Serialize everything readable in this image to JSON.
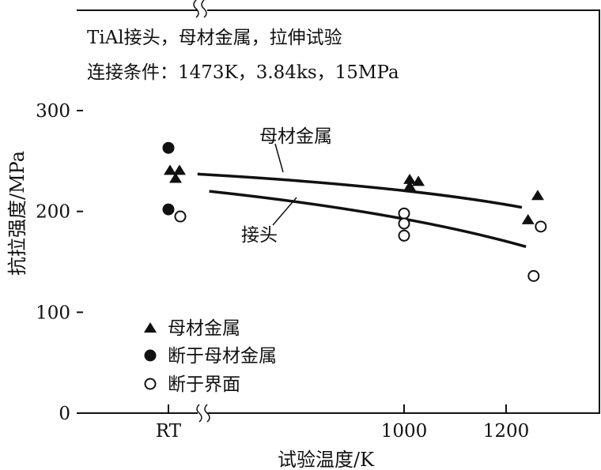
{
  "chart_data": {
    "type": "scatter",
    "annotation_lines": [
      "TiAl接头，母材金属，拉伸试验",
      "连接条件：1473K，3.84ks，15MPa"
    ],
    "xlabel": "试验温度/K",
    "ylabel": "抗拉强度/MPa",
    "ylim": [
      0,
      300
    ],
    "y_ticks": [
      0,
      100,
      200,
      300
    ],
    "x_ticks": [
      {
        "label": "RT",
        "value": "RT"
      },
      {
        "label": "1000",
        "value": 1000
      },
      {
        "label": "1200",
        "value": 1200
      }
    ],
    "x_axis_break": "between RT and 1000 K",
    "grid": false,
    "legend_position": "bottom-left",
    "series": [
      {
        "name": "母材金属",
        "marker": "filled-triangle",
        "points": [
          {
            "x": "RT",
            "y": 241
          },
          {
            "x": "RT",
            "y": 241
          },
          {
            "x": "RT",
            "y": 233
          },
          {
            "x": 1011,
            "y": 232
          },
          {
            "x": 1028,
            "y": 230
          },
          {
            "x": 1011,
            "y": 225
          },
          {
            "x": 1262,
            "y": 216
          },
          {
            "x": 1243,
            "y": 192
          }
        ]
      },
      {
        "name": "断于母材金属",
        "marker": "filled-circle",
        "points": [
          {
            "x": "RT",
            "y": 263
          },
          {
            "x": "RT",
            "y": 202
          }
        ]
      },
      {
        "name": "断于界面",
        "marker": "open-circle",
        "points": [
          {
            "x": "RT",
            "y": 195
          },
          {
            "x": 1000,
            "y": 198
          },
          {
            "x": 1000,
            "y": 188
          },
          {
            "x": 1000,
            "y": 176
          },
          {
            "x": 1268,
            "y": 185
          },
          {
            "x": 1254,
            "y": 136
          }
        ]
      }
    ],
    "curves": [
      {
        "label": "母材金属",
        "points": [
          {
            "x": 595,
            "y": 237
          },
          {
            "x": 1000,
            "y": 223
          },
          {
            "x": 1231,
            "y": 204
          }
        ]
      },
      {
        "label": "接头",
        "points": [
          {
            "x": 618,
            "y": 220
          },
          {
            "x": 1000,
            "y": 196
          },
          {
            "x": 1239,
            "y": 165
          }
        ]
      }
    ]
  }
}
